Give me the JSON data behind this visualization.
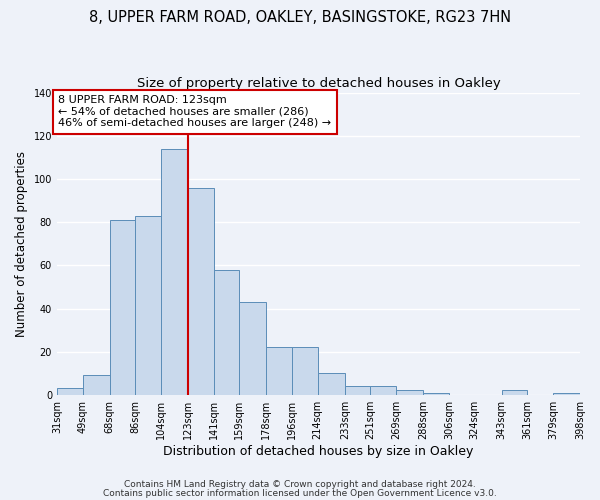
{
  "title1": "8, UPPER FARM ROAD, OAKLEY, BASINGSTOKE, RG23 7HN",
  "title2": "Size of property relative to detached houses in Oakley",
  "xlabel": "Distribution of detached houses by size in Oakley",
  "ylabel": "Number of detached properties",
  "bar_left_edges": [
    31,
    49,
    68,
    86,
    104,
    123,
    141,
    159,
    178,
    196,
    214,
    233,
    251,
    269,
    288,
    306,
    324,
    343,
    361,
    379
  ],
  "bar_widths": [
    18,
    19,
    18,
    18,
    19,
    18,
    18,
    19,
    18,
    18,
    19,
    18,
    18,
    19,
    18,
    18,
    19,
    18,
    18,
    19
  ],
  "bar_heights": [
    3,
    9,
    81,
    83,
    114,
    96,
    58,
    43,
    22,
    22,
    10,
    4,
    4,
    2,
    1,
    0,
    0,
    2,
    0,
    1
  ],
  "tick_labels": [
    "31sqm",
    "49sqm",
    "68sqm",
    "86sqm",
    "104sqm",
    "123sqm",
    "141sqm",
    "159sqm",
    "178sqm",
    "196sqm",
    "214sqm",
    "233sqm",
    "251sqm",
    "269sqm",
    "288sqm",
    "306sqm",
    "324sqm",
    "343sqm",
    "361sqm",
    "379sqm",
    "398sqm"
  ],
  "bar_color": "#c9d9ec",
  "bar_edge_color": "#5b8db8",
  "vline_x": 123,
  "vline_color": "#cc0000",
  "annotation_line1": "8 UPPER FARM ROAD: 123sqm",
  "annotation_line2": "← 54% of detached houses are smaller (286)",
  "annotation_line3": "46% of semi-detached houses are larger (248) →",
  "annotation_box_edgecolor": "#cc0000",
  "ylim": [
    0,
    140
  ],
  "yticks": [
    0,
    20,
    40,
    60,
    80,
    100,
    120,
    140
  ],
  "footer1": "Contains HM Land Registry data © Crown copyright and database right 2024.",
  "footer2": "Contains public sector information licensed under the Open Government Licence v3.0.",
  "background_color": "#eef2f9",
  "grid_color": "#ffffff",
  "title1_fontsize": 10.5,
  "title2_fontsize": 9.5,
  "xlabel_fontsize": 9,
  "ylabel_fontsize": 8.5,
  "tick_fontsize": 7,
  "annotation_fontsize": 8,
  "footer_fontsize": 6.5
}
